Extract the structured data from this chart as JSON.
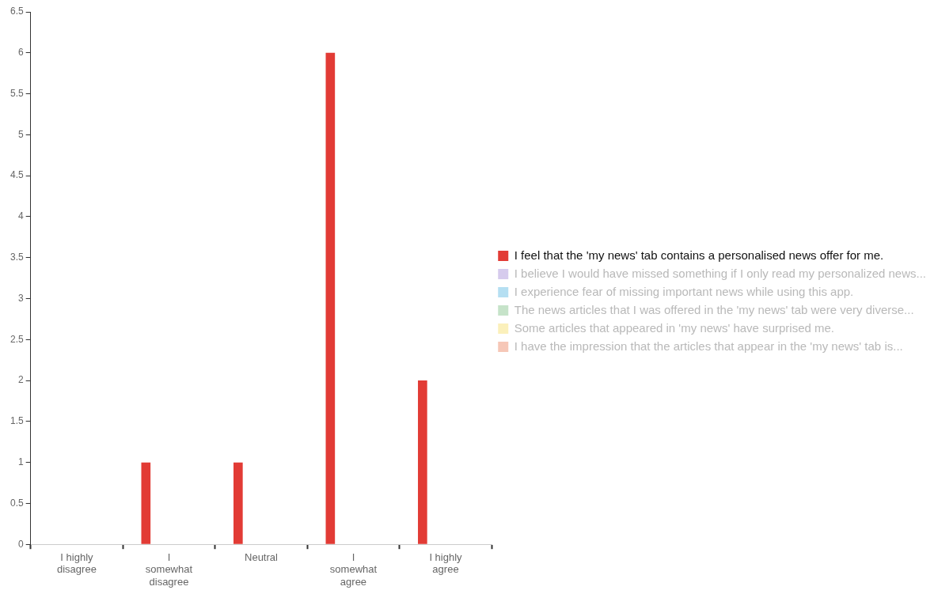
{
  "chart_data": {
    "type": "bar",
    "categories": [
      "I highly disagree",
      "I somewhat disagree",
      "Neutral",
      "I somewhat agree",
      "I highly agree"
    ],
    "series": [
      {
        "name": "I feel that the 'my news' tab contains a personalised news offer for me.",
        "color": "#e23b35",
        "values": [
          0,
          1,
          1,
          6,
          2
        ]
      },
      {
        "name": "I believe I would have missed something if I only read my personalized news...",
        "color": "#d6cbed",
        "values": [
          null,
          null,
          null,
          null,
          null
        ]
      },
      {
        "name": "I experience fear of missing important news while using this app.",
        "color": "#b5dff2",
        "values": [
          null,
          null,
          null,
          null,
          null
        ]
      },
      {
        "name": "The news articles that I was offered in the 'my news' tab were very diverse...",
        "color": "#c6e3c9",
        "values": [
          null,
          null,
          null,
          null,
          null
        ]
      },
      {
        "name": "Some articles that appeared in 'my news' have surprised me.",
        "color": "#fbf0bb",
        "values": [
          null,
          null,
          null,
          null,
          null
        ]
      },
      {
        "name": "I have the impression that the articles that appear in the 'my news' tab is...",
        "color": "#f6c7b7",
        "values": [
          null,
          null,
          null,
          null,
          null
        ]
      }
    ],
    "ylim": [
      0,
      6.5
    ],
    "yticks": [
      0,
      0.5,
      1,
      1.5,
      2,
      2.5,
      3,
      3.5,
      4,
      4.5,
      5,
      5.5,
      6,
      6.5
    ],
    "grid": false,
    "legend": "right"
  }
}
